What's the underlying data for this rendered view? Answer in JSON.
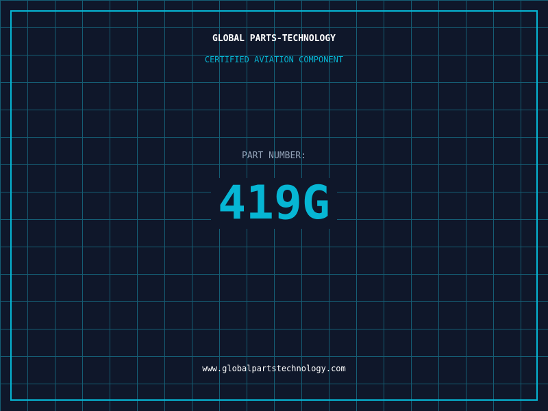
{
  "header": {
    "title": "GLOBAL PARTS-TECHNOLOGY",
    "subtitle": "CERTIFIED AVIATION COMPONENT"
  },
  "part": {
    "label": "PART NUMBER:",
    "number": "419G"
  },
  "footer": {
    "url": "www.globalpartstechnology.com"
  },
  "colors": {
    "background": "#0f172a",
    "accent": "#06b6d4",
    "grid": "#155e75"
  }
}
